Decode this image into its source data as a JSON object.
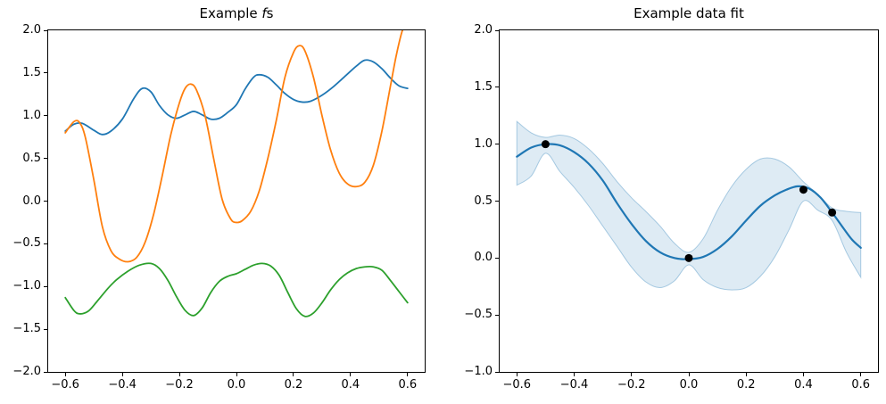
{
  "figure": {
    "background": "#ffffff"
  },
  "chart_data": [
    {
      "type": "line",
      "title": "Example fs",
      "title_parts": [
        "Example ",
        "f",
        "s"
      ],
      "axes": {
        "xlim": [
          -0.66,
          0.66
        ],
        "ylim": [
          -2.0,
          2.0
        ],
        "xticks": [
          -0.6,
          -0.4,
          -0.2,
          0.0,
          0.2,
          0.4,
          0.6
        ],
        "xtick_labels": [
          "−0.6",
          "−0.4",
          "−0.2",
          "0.0",
          "0.2",
          "0.4",
          "0.6"
        ],
        "yticks": [
          -2.0,
          -1.5,
          -1.0,
          -0.5,
          0.0,
          0.5,
          1.0,
          1.5,
          2.0
        ],
        "ytick_labels": [
          "−2.0",
          "−1.5",
          "−1.0",
          "−0.5",
          "0.0",
          "0.5",
          "1.0",
          "1.5",
          "2.0"
        ],
        "grid": false,
        "legend": "none"
      },
      "series": [
        {
          "name": "sample-f-blue",
          "color": "#1f77b4",
          "x": [
            -0.6,
            -0.57,
            -0.54,
            -0.5,
            -0.47,
            -0.44,
            -0.4,
            -0.36,
            -0.33,
            -0.3,
            -0.27,
            -0.24,
            -0.21,
            -0.18,
            -0.15,
            -0.12,
            -0.09,
            -0.06,
            -0.03,
            0.0,
            0.03,
            0.06,
            0.08,
            0.11,
            0.14,
            0.17,
            0.2,
            0.23,
            0.26,
            0.3,
            0.34,
            0.38,
            0.42,
            0.45,
            0.48,
            0.51,
            0.54,
            0.57,
            0.6
          ],
          "y": [
            0.82,
            0.9,
            0.91,
            0.83,
            0.78,
            0.82,
            0.96,
            1.2,
            1.32,
            1.28,
            1.12,
            1.01,
            0.97,
            1.01,
            1.05,
            1.01,
            0.96,
            0.97,
            1.04,
            1.13,
            1.31,
            1.45,
            1.48,
            1.45,
            1.36,
            1.26,
            1.19,
            1.16,
            1.17,
            1.24,
            1.34,
            1.46,
            1.58,
            1.65,
            1.63,
            1.55,
            1.44,
            1.35,
            1.32
          ]
        },
        {
          "name": "sample-f-orange",
          "color": "#ff7f0e",
          "x": [
            -0.6,
            -0.57,
            -0.55,
            -0.53,
            -0.5,
            -0.47,
            -0.44,
            -0.41,
            -0.38,
            -0.35,
            -0.32,
            -0.29,
            -0.26,
            -0.23,
            -0.2,
            -0.18,
            -0.16,
            -0.14,
            -0.11,
            -0.08,
            -0.05,
            -0.02,
            0.0,
            0.02,
            0.05,
            0.08,
            0.11,
            0.14,
            0.17,
            0.2,
            0.22,
            0.24,
            0.27,
            0.3,
            0.33,
            0.36,
            0.39,
            0.42,
            0.45,
            0.48,
            0.51,
            0.54,
            0.56,
            0.58,
            0.595
          ],
          "y": [
            0.8,
            0.93,
            0.92,
            0.75,
            0.25,
            -0.3,
            -0.58,
            -0.68,
            -0.71,
            -0.66,
            -0.48,
            -0.15,
            0.3,
            0.78,
            1.15,
            1.32,
            1.37,
            1.3,
            1.0,
            0.5,
            0.02,
            -0.21,
            -0.25,
            -0.23,
            -0.12,
            0.12,
            0.5,
            0.95,
            1.45,
            1.74,
            1.82,
            1.76,
            1.45,
            1.0,
            0.6,
            0.33,
            0.2,
            0.17,
            0.22,
            0.42,
            0.82,
            1.35,
            1.7,
            1.98,
            2.1
          ]
        },
        {
          "name": "sample-f-green",
          "color": "#2ca02c",
          "x": [
            -0.6,
            -0.57,
            -0.55,
            -0.52,
            -0.49,
            -0.45,
            -0.42,
            -0.38,
            -0.34,
            -0.3,
            -0.27,
            -0.24,
            -0.21,
            -0.18,
            -0.15,
            -0.12,
            -0.09,
            -0.06,
            -0.03,
            0.0,
            0.03,
            0.06,
            0.09,
            0.12,
            0.15,
            0.18,
            0.21,
            0.24,
            0.27,
            0.3,
            0.33,
            0.36,
            0.39,
            0.42,
            0.45,
            0.48,
            0.51,
            0.54,
            0.57,
            0.6
          ],
          "y": [
            -1.13,
            -1.28,
            -1.32,
            -1.29,
            -1.18,
            -1.02,
            -0.92,
            -0.82,
            -0.75,
            -0.73,
            -0.79,
            -0.93,
            -1.12,
            -1.28,
            -1.34,
            -1.25,
            -1.07,
            -0.94,
            -0.88,
            -0.85,
            -0.8,
            -0.75,
            -0.73,
            -0.76,
            -0.87,
            -1.07,
            -1.26,
            -1.35,
            -1.31,
            -1.19,
            -1.04,
            -0.92,
            -0.84,
            -0.79,
            -0.77,
            -0.77,
            -0.81,
            -0.93,
            -1.06,
            -1.19
          ]
        }
      ]
    },
    {
      "type": "line",
      "title": "Example data fit",
      "axes": {
        "xlim": [
          -0.66,
          0.66
        ],
        "ylim": [
          -1.0,
          2.0
        ],
        "xticks": [
          -0.6,
          -0.4,
          -0.2,
          0.0,
          0.2,
          0.4,
          0.6
        ],
        "xtick_labels": [
          "−0.6",
          "−0.4",
          "−0.2",
          "0.0",
          "0.2",
          "0.4",
          "0.6"
        ],
        "yticks": [
          -1.0,
          -0.5,
          0.0,
          0.5,
          1.0,
          1.5,
          2.0
        ],
        "ytick_labels": [
          "−1.0",
          "−0.5",
          "0.0",
          "0.5",
          "1.0",
          "1.5",
          "2.0"
        ],
        "grid": false,
        "legend": "none"
      },
      "band": {
        "name": "confidence-band",
        "color": "#1f77b4",
        "fill_opacity": 0.15,
        "edge_opacity": 0.35,
        "x": [
          -0.6,
          -0.55,
          -0.5,
          -0.45,
          -0.4,
          -0.35,
          -0.3,
          -0.25,
          -0.2,
          -0.15,
          -0.1,
          -0.05,
          0.0,
          0.05,
          0.1,
          0.15,
          0.2,
          0.25,
          0.3,
          0.35,
          0.4,
          0.45,
          0.5,
          0.55,
          0.6
        ],
        "upper": [
          1.2,
          1.1,
          1.06,
          1.08,
          1.05,
          0.96,
          0.83,
          0.67,
          0.53,
          0.41,
          0.28,
          0.13,
          0.05,
          0.17,
          0.42,
          0.63,
          0.78,
          0.87,
          0.87,
          0.8,
          0.67,
          0.56,
          0.44,
          0.41,
          0.4
        ],
        "lower": [
          0.64,
          0.72,
          0.92,
          0.76,
          0.62,
          0.46,
          0.28,
          0.1,
          -0.08,
          -0.21,
          -0.26,
          -0.2,
          -0.06,
          -0.19,
          -0.26,
          -0.28,
          -0.26,
          -0.16,
          0.01,
          0.25,
          0.5,
          0.42,
          0.33,
          0.05,
          -0.17
        ]
      },
      "series": [
        {
          "name": "posterior-mean",
          "color": "#1f77b4",
          "x": [
            -0.6,
            -0.55,
            -0.5,
            -0.45,
            -0.4,
            -0.35,
            -0.3,
            -0.25,
            -0.2,
            -0.15,
            -0.1,
            -0.05,
            0.0,
            0.05,
            0.1,
            0.15,
            0.2,
            0.25,
            0.3,
            0.34,
            0.38,
            0.42,
            0.46,
            0.5,
            0.54,
            0.57,
            0.6
          ],
          "y": [
            0.89,
            0.97,
            1.0,
            0.99,
            0.93,
            0.83,
            0.68,
            0.48,
            0.3,
            0.15,
            0.05,
            0.0,
            -0.01,
            0.01,
            0.08,
            0.19,
            0.33,
            0.46,
            0.55,
            0.6,
            0.63,
            0.61,
            0.53,
            0.4,
            0.26,
            0.16,
            0.09
          ]
        }
      ],
      "points": {
        "name": "observations",
        "color": "#000000",
        "marker": "circle",
        "radius": 4.5,
        "x": [
          -0.5,
          0.0,
          0.4,
          0.5
        ],
        "y": [
          1.0,
          0.0,
          0.6,
          0.4
        ]
      }
    }
  ]
}
